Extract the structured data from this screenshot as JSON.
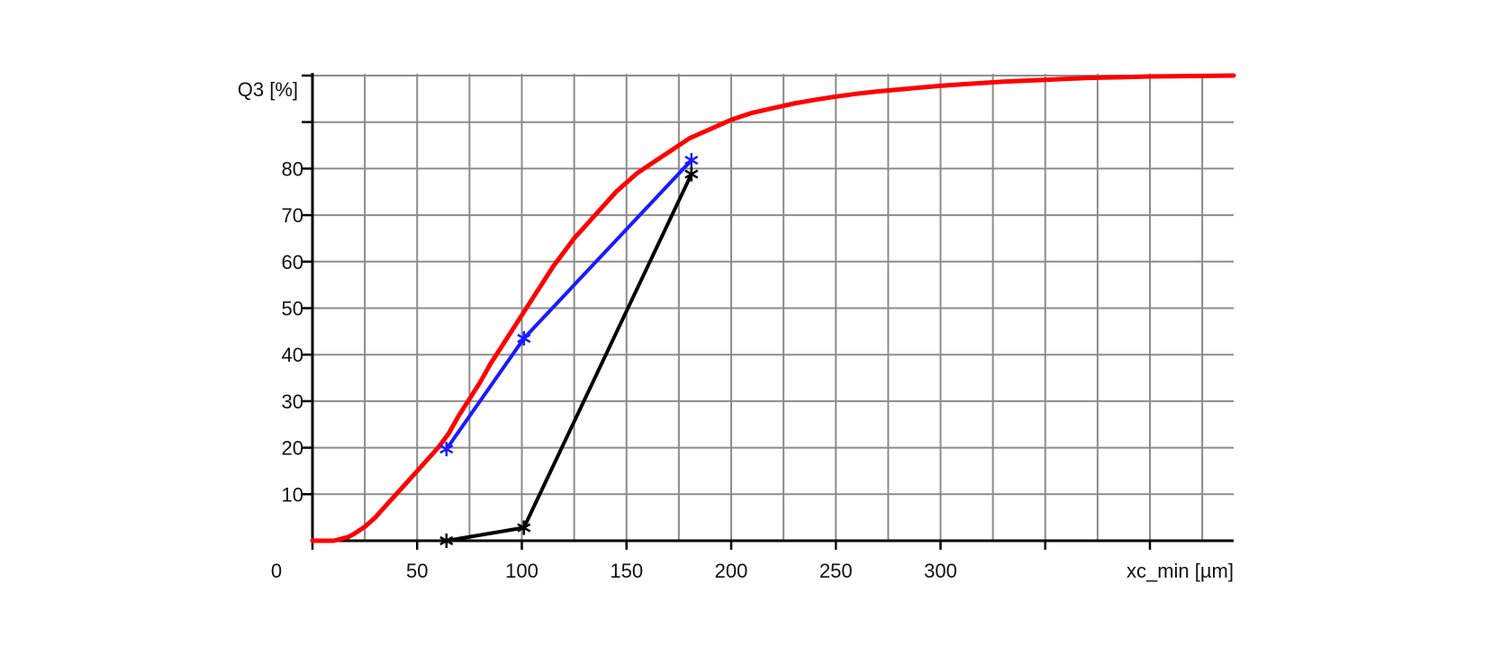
{
  "chart_data": {
    "type": "line",
    "title": "",
    "ylabel": "Q3 [%]",
    "xlabel": "xc_min [µm]",
    "xlim": [
      0,
      440
    ],
    "ylim": [
      0,
      100
    ],
    "grid": true,
    "x_ticks": [
      0,
      50,
      100,
      150,
      200,
      250,
      300
    ],
    "x_tick_labels": [
      "0",
      "50",
      "100",
      "150",
      "200",
      "250",
      "300"
    ],
    "x_grid_step": 25,
    "y_ticks": [
      10,
      20,
      30,
      40,
      50,
      60,
      70,
      80
    ],
    "y_tick_labels": [
      "10",
      "20",
      "30",
      "40",
      "50",
      "60",
      "70",
      "80"
    ],
    "y_grid_step": 10,
    "colors": {
      "red_curve": "#ff0000",
      "blue_series": "#1a1aff",
      "black_series": "#000000",
      "grid": "#8c8c8c",
      "axis": "#000000"
    },
    "series": [
      {
        "color": "red",
        "marker": "none",
        "x": [
          0,
          10,
          13,
          17,
          20,
          25,
          30,
          35,
          40,
          45,
          50,
          55,
          60,
          65,
          70,
          75,
          80,
          85,
          90,
          95,
          100,
          105,
          110,
          115,
          120,
          125,
          130,
          135,
          140,
          145,
          150,
          155,
          160,
          165,
          170,
          175,
          180,
          185,
          190,
          195,
          200,
          210,
          220,
          230,
          240,
          250,
          260,
          270,
          280,
          290,
          300,
          310,
          320,
          330,
          340,
          350,
          360,
          370,
          380,
          390,
          400,
          410,
          420,
          430,
          440
        ],
        "y": [
          0,
          0,
          0.3,
          0.8,
          1.5,
          3,
          5,
          7.5,
          10,
          12.5,
          15,
          17.5,
          20,
          23,
          27,
          30.5,
          34,
          38,
          41.5,
          45,
          48.5,
          52,
          55.5,
          59,
          62,
          65,
          67.5,
          70,
          72.5,
          75,
          77,
          79,
          80.5,
          82,
          83.5,
          85,
          86.5,
          87.5,
          88.5,
          89.5,
          90.5,
          92,
          93,
          94,
          94.8,
          95.5,
          96.1,
          96.6,
          97,
          97.4,
          97.8,
          98.1,
          98.4,
          98.7,
          98.9,
          99.1,
          99.3,
          99.5,
          99.6,
          99.7,
          99.8,
          99.85,
          99.9,
          99.95,
          100
        ]
      },
      {
        "color": "blue",
        "marker": "asterisk",
        "x": [
          64,
          101,
          181
        ],
        "y": [
          19.7,
          43.5,
          81.8
        ]
      },
      {
        "color": "black",
        "marker": "asterisk",
        "x": [
          64,
          101,
          181
        ],
        "y": [
          0,
          2.8,
          78.8
        ]
      }
    ]
  }
}
